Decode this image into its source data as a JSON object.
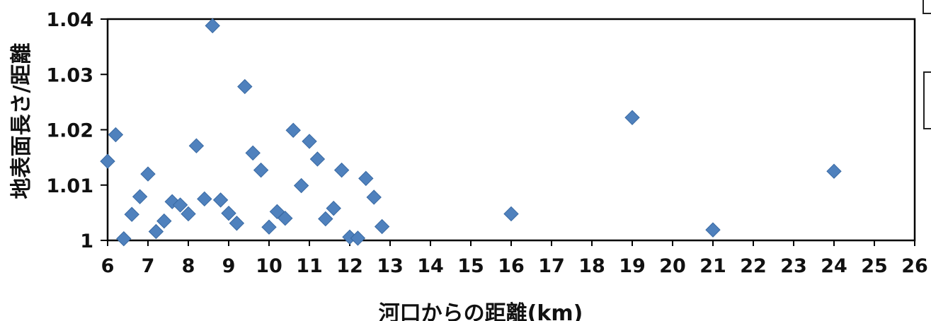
{
  "chart_data": {
    "type": "scatter",
    "xlabel": "河口からの距離(km)",
    "ylabel": "地表面長さ/距離",
    "xlim": [
      6,
      26
    ],
    "ylim": [
      1,
      1.04
    ],
    "x_ticks": [
      "6",
      "7",
      "8",
      "9",
      "10",
      "11",
      "12",
      "13",
      "14",
      "15",
      "16",
      "17",
      "18",
      "19",
      "20",
      "21",
      "22",
      "23",
      "24",
      "25",
      "26"
    ],
    "y_ticks": [
      "1",
      "1.01",
      "1.02",
      "1.03",
      "1.04"
    ],
    "grid": false,
    "marker": "diamond",
    "color": "#4f81bd",
    "series": [
      {
        "points": [
          {
            "x": 6.0,
            "y": 1.0143
          },
          {
            "x": 6.2,
            "y": 1.0191
          },
          {
            "x": 6.4,
            "y": 1.0003
          },
          {
            "x": 6.6,
            "y": 1.0047
          },
          {
            "x": 6.8,
            "y": 1.0079
          },
          {
            "x": 7.0,
            "y": 1.012
          },
          {
            "x": 7.2,
            "y": 1.0016
          },
          {
            "x": 7.4,
            "y": 1.0035
          },
          {
            "x": 7.6,
            "y": 1.007
          },
          {
            "x": 7.8,
            "y": 1.0064
          },
          {
            "x": 8.0,
            "y": 1.0048
          },
          {
            "x": 8.2,
            "y": 1.0171
          },
          {
            "x": 8.4,
            "y": 1.0075
          },
          {
            "x": 8.6,
            "y": 1.0388
          },
          {
            "x": 8.8,
            "y": 1.0073
          },
          {
            "x": 9.0,
            "y": 1.0049
          },
          {
            "x": 9.2,
            "y": 1.0031
          },
          {
            "x": 9.4,
            "y": 1.0278
          },
          {
            "x": 9.6,
            "y": 1.0158
          },
          {
            "x": 9.8,
            "y": 1.0127
          },
          {
            "x": 10.0,
            "y": 1.0024
          },
          {
            "x": 10.2,
            "y": 1.0052
          },
          {
            "x": 10.4,
            "y": 1.004
          },
          {
            "x": 10.6,
            "y": 1.0199
          },
          {
            "x": 10.8,
            "y": 1.0099
          },
          {
            "x": 11.0,
            "y": 1.0179
          },
          {
            "x": 11.2,
            "y": 1.0147
          },
          {
            "x": 11.4,
            "y": 1.0039
          },
          {
            "x": 11.6,
            "y": 1.0058
          },
          {
            "x": 11.8,
            "y": 1.0127
          },
          {
            "x": 12.0,
            "y": 1.0006
          },
          {
            "x": 12.2,
            "y": 1.0004
          },
          {
            "x": 12.4,
            "y": 1.0112
          },
          {
            "x": 12.6,
            "y": 1.0078
          },
          {
            "x": 12.8,
            "y": 1.0025
          },
          {
            "x": 16.0,
            "y": 1.0048
          },
          {
            "x": 19.0,
            "y": 1.0222
          },
          {
            "x": 21.0,
            "y": 1.0019
          },
          {
            "x": 24.0,
            "y": 1.0125
          }
        ]
      }
    ]
  }
}
